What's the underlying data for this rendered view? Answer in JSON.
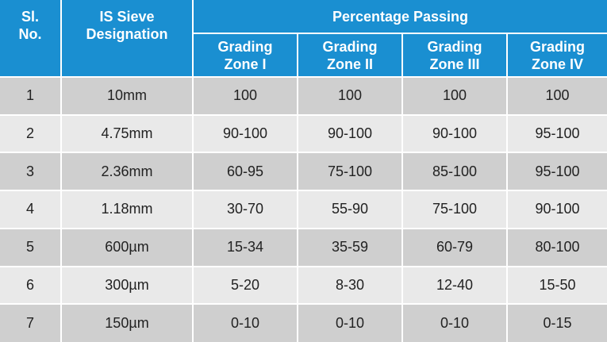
{
  "header": {
    "sl_no": "Sl.\nNo.",
    "sieve": "IS Sieve\nDesignation",
    "group": "Percentage Passing",
    "zones": [
      "Grading\nZone I",
      "Grading\nZone II",
      "Grading\nZone III",
      "Grading\nZone IV"
    ]
  },
  "rows": [
    {
      "sl": "1",
      "sieve": "10mm",
      "z1": "100",
      "z2": "100",
      "z3": "100",
      "z4": "100"
    },
    {
      "sl": "2",
      "sieve": "4.75mm",
      "z1": "90-100",
      "z2": "90-100",
      "z3": "90-100",
      "z4": "95-100"
    },
    {
      "sl": "3",
      "sieve": "2.36mm",
      "z1": "60-95",
      "z2": "75-100",
      "z3": "85-100",
      "z4": "95-100"
    },
    {
      "sl": "4",
      "sieve": "1.18mm",
      "z1": "30-70",
      "z2": "55-90",
      "z3": "75-100",
      "z4": "90-100"
    },
    {
      "sl": "5",
      "sieve": "600µm",
      "z1": "15-34",
      "z2": "35-59",
      "z3": "60-79",
      "z4": "80-100"
    },
    {
      "sl": "6",
      "sieve": "300µm",
      "z1": "5-20",
      "z2": "8-30",
      "z3": "12-40",
      "z4": "15-50"
    },
    {
      "sl": "7",
      "sieve": "150µm",
      "z1": "0-10",
      "z2": "0-10",
      "z3": "0-10",
      "z4": "0-15"
    }
  ],
  "colors": {
    "header_bg": "#1a8fd1",
    "row_dark": "#cfcfcf",
    "row_light": "#e9e9e9",
    "text": "#222222"
  }
}
